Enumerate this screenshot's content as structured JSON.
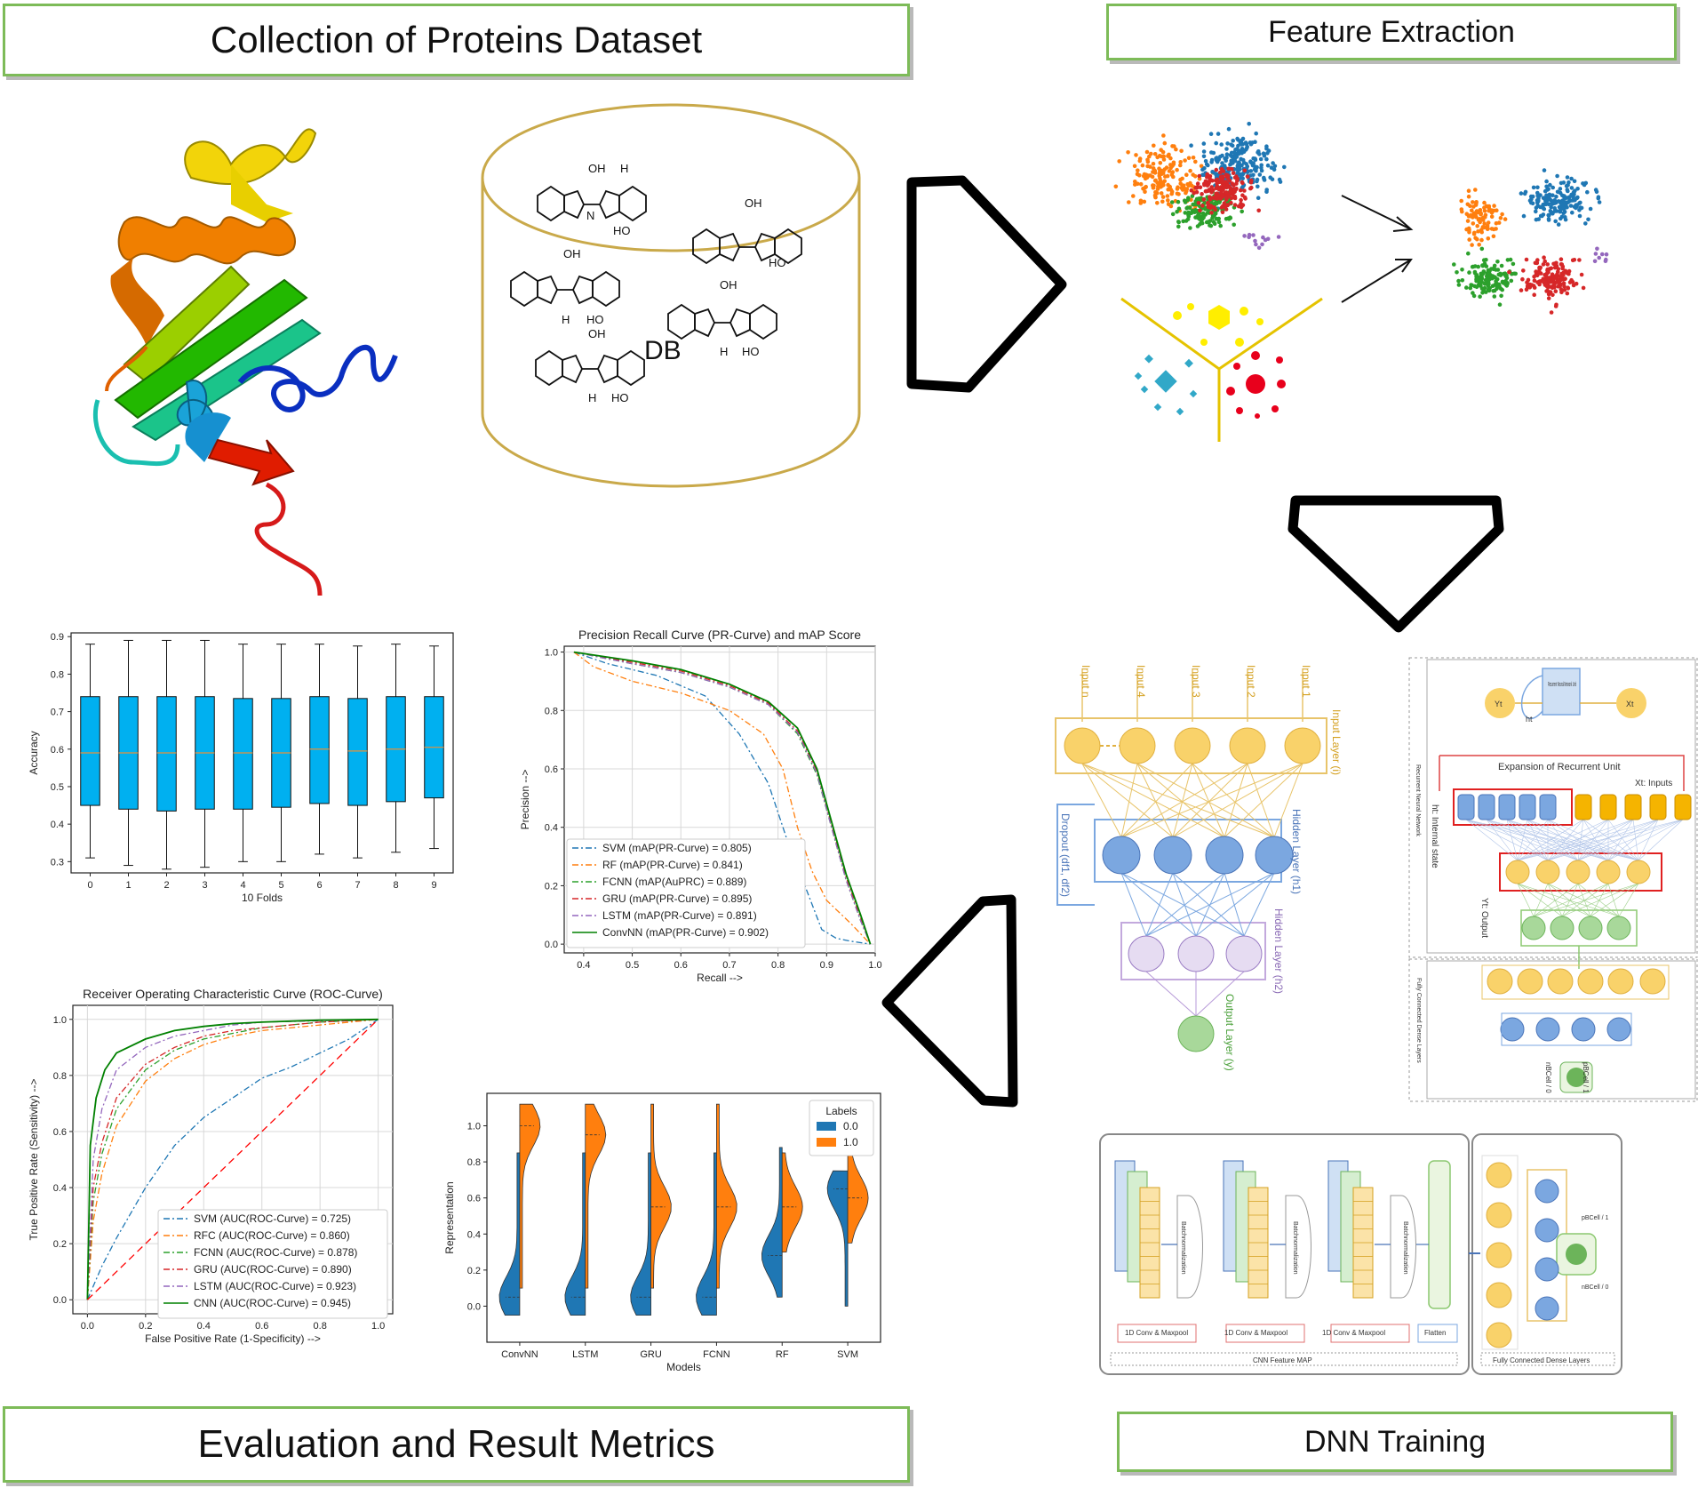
{
  "sections": {
    "collection_title": "Collection of Proteins  Dataset",
    "feature_title": "Feature Extraction",
    "dnn_title": "DNN Training",
    "evaluation_title": "Evaluation and Result Metrics"
  },
  "database": {
    "label": "DB",
    "molecule_labels": [
      "OH",
      "H",
      "N",
      "N",
      "H",
      "HO"
    ]
  },
  "colors": {
    "green_border": "#7dbb58",
    "db_outline": "#c9a94a",
    "blue": "#1f77b4",
    "orange": "#ff7f0e",
    "green": "#2ca02c",
    "red": "#d62728",
    "purple": "#9467bd",
    "boxplot_fill": "#00b0f0",
    "node_yellow": "#f9d26a",
    "node_blue": "#7ba7e0",
    "node_purple": "#e6dcf2",
    "node_green": "#a8d89a"
  },
  "dnn_diagram": {
    "input_labels": [
      "Input n",
      "Input 4",
      "Input 3",
      "Input 2",
      "Input 1"
    ],
    "input_layer": "Input Layer (i)",
    "hidden1": "Hidden Layer (h1)",
    "hidden2": "Hidden Layer (h2)",
    "output_layer": "Output Layer (y)",
    "dropout": "Dropout (df1, df2)"
  },
  "rnn_diagram": {
    "unit_label": "Recurrent Neural Network Unit",
    "y_label": "Yt",
    "x_label": "Xt",
    "h_label": "ht",
    "expansion": "Expansion of Recurrent Unit",
    "inputs": "Xt: Inputs",
    "internal": "ht: Internal state",
    "output": "Yt: Output",
    "side": "Recurrent Neural Network",
    "fc_side": "Fully Connected Dense Layers",
    "pbcell": "pBCell / 1",
    "nbcell": "nBCell / 0"
  },
  "cnn_diagram": {
    "batchnorm": "Batchnormalization",
    "blocks": [
      "1D Conv & Maxpool",
      "1D Conv & Maxpool",
      "1D Conv & Maxpool"
    ],
    "flatten": "Flatten",
    "feature_map": "CNN Feature MAP",
    "dense": "Fully Connected Dense Layers",
    "pbcell": "pBCell / 1",
    "nbcell": "nBCell / 0"
  },
  "chart_data": [
    {
      "type": "box",
      "title": "",
      "xlabel": "10 Folds",
      "ylabel": "Accuracy",
      "categories": [
        "0",
        "1",
        "2",
        "3",
        "4",
        "5",
        "6",
        "7",
        "8",
        "9"
      ],
      "ylim": [
        0.27,
        0.91
      ],
      "yticks": [
        "0.3",
        "0.4",
        "0.5",
        "0.6",
        "0.7",
        "0.8",
        "0.9"
      ],
      "boxes": [
        {
          "min": 0.31,
          "q1": 0.45,
          "median": 0.59,
          "q3": 0.74,
          "max": 0.88
        },
        {
          "min": 0.29,
          "q1": 0.44,
          "median": 0.59,
          "q3": 0.74,
          "max": 0.89
        },
        {
          "min": 0.28,
          "q1": 0.435,
          "median": 0.59,
          "q3": 0.74,
          "max": 0.89
        },
        {
          "min": 0.285,
          "q1": 0.44,
          "median": 0.59,
          "q3": 0.74,
          "max": 0.89
        },
        {
          "min": 0.3,
          "q1": 0.44,
          "median": 0.59,
          "q3": 0.735,
          "max": 0.88
        },
        {
          "min": 0.3,
          "q1": 0.445,
          "median": 0.59,
          "q3": 0.735,
          "max": 0.88
        },
        {
          "min": 0.32,
          "q1": 0.455,
          "median": 0.6,
          "q3": 0.74,
          "max": 0.88
        },
        {
          "min": 0.31,
          "q1": 0.45,
          "median": 0.595,
          "q3": 0.735,
          "max": 0.875
        },
        {
          "min": 0.325,
          "q1": 0.46,
          "median": 0.6,
          "q3": 0.74,
          "max": 0.88
        },
        {
          "min": 0.335,
          "q1": 0.47,
          "median": 0.605,
          "q3": 0.74,
          "max": 0.875
        }
      ]
    },
    {
      "type": "line",
      "title": "Precision Recall Curve (PR-Curve) and mAP Score",
      "xlabel": "Recall -->",
      "ylabel": "Precision -->",
      "xlim": [
        0.36,
        1.0
      ],
      "ylim": [
        -0.03,
        1.02
      ],
      "xticks": [
        "0.4",
        "0.5",
        "0.6",
        "0.7",
        "0.8",
        "0.9",
        "1.0"
      ],
      "yticks": [
        "0.0",
        "0.2",
        "0.4",
        "0.6",
        "0.8",
        "1.0"
      ],
      "legend_position": "lower-left",
      "series": [
        {
          "name": "SVM (mAP(PR-Curve) = 0.805)",
          "color": "#1f77b4",
          "dash": "dashdot",
          "x": [
            0.38,
            0.45,
            0.55,
            0.65,
            0.72,
            0.78,
            0.82,
            0.86,
            0.89,
            0.92,
            0.95,
            0.99
          ],
          "y": [
            1.0,
            0.96,
            0.92,
            0.85,
            0.72,
            0.55,
            0.35,
            0.18,
            0.05,
            0.02,
            0.01,
            0.0
          ]
        },
        {
          "name": "RF (mAP(PR-Curve) = 0.841)",
          "color": "#ff7f0e",
          "dash": "dashdot",
          "x": [
            0.38,
            0.42,
            0.5,
            0.6,
            0.7,
            0.77,
            0.81,
            0.84,
            0.87,
            0.9,
            0.95,
            0.99
          ],
          "y": [
            1.0,
            0.95,
            0.9,
            0.86,
            0.8,
            0.72,
            0.6,
            0.4,
            0.25,
            0.15,
            0.07,
            0.0
          ]
        },
        {
          "name": "FCNN (mAP(AuPRC) = 0.889)",
          "color": "#2ca02c",
          "dash": "dashdot",
          "x": [
            0.38,
            0.5,
            0.6,
            0.7,
            0.78,
            0.84,
            0.88,
            0.91,
            0.94,
            0.97,
            0.99
          ],
          "y": [
            1.0,
            0.96,
            0.93,
            0.88,
            0.82,
            0.72,
            0.58,
            0.4,
            0.22,
            0.08,
            0.0
          ]
        },
        {
          "name": "GRU (mAP(PR-Curve) = 0.895)",
          "color": "#d62728",
          "dash": "dashdot",
          "x": [
            0.38,
            0.5,
            0.6,
            0.7,
            0.78,
            0.84,
            0.88,
            0.91,
            0.94,
            0.97,
            0.99
          ],
          "y": [
            1.0,
            0.965,
            0.935,
            0.885,
            0.825,
            0.73,
            0.59,
            0.41,
            0.23,
            0.09,
            0.0
          ]
        },
        {
          "name": "LSTM (mAP(PR-Curve) = 0.891)",
          "color": "#9467bd",
          "dash": "dashdot",
          "x": [
            0.38,
            0.5,
            0.6,
            0.7,
            0.78,
            0.84,
            0.88,
            0.91,
            0.94,
            0.97,
            0.99
          ],
          "y": [
            1.0,
            0.96,
            0.93,
            0.88,
            0.82,
            0.725,
            0.585,
            0.4,
            0.22,
            0.08,
            0.0
          ]
        },
        {
          "name": "ConvNN (mAP(PR-Curve) = 0.902)",
          "color": "#008000",
          "dash": "solid",
          "x": [
            0.38,
            0.5,
            0.6,
            0.7,
            0.78,
            0.84,
            0.88,
            0.91,
            0.94,
            0.97,
            0.99
          ],
          "y": [
            1.0,
            0.97,
            0.94,
            0.89,
            0.83,
            0.74,
            0.6,
            0.42,
            0.24,
            0.1,
            0.0
          ]
        }
      ]
    },
    {
      "type": "line",
      "title": "Receiver Operating Characteristic Curve (ROC-Curve)",
      "xlabel": "False Positive Rate (1-Specificity) -->",
      "ylabel": "True Positive Rate (Sensitivity) -->",
      "xlim": [
        -0.05,
        1.05
      ],
      "ylim": [
        -0.05,
        1.05
      ],
      "xticks": [
        "0.0",
        "0.2",
        "0.4",
        "0.6",
        "0.8",
        "1.0"
      ],
      "yticks": [
        "0.0",
        "0.2",
        "0.4",
        "0.6",
        "0.8",
        "1.0"
      ],
      "legend_position": "lower-right",
      "series": [
        {
          "name": "SVM (AUC(ROC-Curve) = 0.725)",
          "color": "#1f77b4",
          "dash": "dashdot",
          "x": [
            0.0,
            0.05,
            0.1,
            0.2,
            0.3,
            0.4,
            0.5,
            0.6,
            0.7,
            0.8,
            0.9,
            1.0
          ],
          "y": [
            0.0,
            0.12,
            0.22,
            0.4,
            0.55,
            0.65,
            0.72,
            0.79,
            0.83,
            0.88,
            0.93,
            1.0
          ]
        },
        {
          "name": "RFC (AUC(ROC-Curve) = 0.860)",
          "color": "#ff7f0e",
          "dash": "dashdot",
          "x": [
            0.0,
            0.02,
            0.05,
            0.1,
            0.2,
            0.3,
            0.4,
            0.5,
            0.6,
            0.8,
            1.0
          ],
          "y": [
            0.0,
            0.28,
            0.45,
            0.62,
            0.78,
            0.86,
            0.91,
            0.94,
            0.96,
            0.98,
            1.0
          ]
        },
        {
          "name": "FCNN (AUC(ROC-Curve) = 0.878)",
          "color": "#2ca02c",
          "dash": "dashdot",
          "x": [
            0.0,
            0.02,
            0.05,
            0.1,
            0.2,
            0.3,
            0.4,
            0.5,
            0.6,
            0.8,
            1.0
          ],
          "y": [
            0.0,
            0.35,
            0.52,
            0.68,
            0.82,
            0.89,
            0.93,
            0.95,
            0.97,
            0.99,
            1.0
          ]
        },
        {
          "name": "GRU (AUC(ROC-Curve) = 0.890)",
          "color": "#d62728",
          "dash": "dashdot",
          "x": [
            0.0,
            0.02,
            0.05,
            0.1,
            0.2,
            0.3,
            0.4,
            0.5,
            0.6,
            0.8,
            1.0
          ],
          "y": [
            0.0,
            0.4,
            0.56,
            0.72,
            0.84,
            0.9,
            0.94,
            0.96,
            0.97,
            0.99,
            1.0
          ]
        },
        {
          "name": "LSTM (AUC(ROC-Curve) = 0.923)",
          "color": "#9467bd",
          "dash": "dashdot",
          "x": [
            0.0,
            0.02,
            0.05,
            0.1,
            0.2,
            0.3,
            0.4,
            0.5,
            0.6,
            0.8,
            1.0
          ],
          "y": [
            0.0,
            0.5,
            0.68,
            0.82,
            0.9,
            0.94,
            0.96,
            0.98,
            0.99,
            0.995,
            1.0
          ]
        },
        {
          "name": "CNN (AUC(ROC-Curve) = 0.945)",
          "color": "#008000",
          "dash": "solid",
          "x": [
            0.0,
            0.01,
            0.03,
            0.06,
            0.1,
            0.2,
            0.3,
            0.4,
            0.5,
            0.6,
            0.8,
            1.0
          ],
          "y": [
            0.0,
            0.55,
            0.72,
            0.82,
            0.88,
            0.93,
            0.96,
            0.975,
            0.985,
            0.99,
            0.997,
            1.0
          ]
        },
        {
          "name": "",
          "color": "#ff0000",
          "dash": "dashed",
          "x": [
            0.0,
            1.0
          ],
          "y": [
            0.0,
            1.0
          ]
        }
      ]
    },
    {
      "type": "violin",
      "title": "",
      "xlabel": "Models",
      "ylabel": "Representation",
      "categories": [
        "ConvNN",
        "LSTM",
        "GRU",
        "FCNN",
        "RF",
        "SVM"
      ],
      "ylim": [
        -0.2,
        1.18
      ],
      "yticks": [
        "0.0",
        "0.2",
        "0.4",
        "0.6",
        "0.8",
        "1.0"
      ],
      "legend_title": "Labels",
      "series": [
        {
          "name": "0.0",
          "color": "#1f77b4",
          "peak": [
            0.05,
            0.05,
            0.05,
            0.05,
            0.28,
            0.65
          ],
          "range": [
            [
              -0.05,
              0.85
            ],
            [
              -0.05,
              0.85
            ],
            [
              -0.05,
              0.85
            ],
            [
              -0.05,
              0.85
            ],
            [
              0.05,
              0.88
            ],
            [
              0.0,
              0.75
            ]
          ]
        },
        {
          "name": "1.0",
          "color": "#ff7f0e",
          "peak": [
            1.0,
            0.95,
            0.55,
            0.55,
            0.55,
            0.6
          ],
          "range": [
            [
              0.1,
              1.12
            ],
            [
              0.1,
              1.12
            ],
            [
              0.1,
              1.12
            ],
            [
              0.1,
              1.12
            ],
            [
              0.3,
              0.85
            ],
            [
              0.35,
              0.85
            ]
          ]
        }
      ]
    }
  ]
}
